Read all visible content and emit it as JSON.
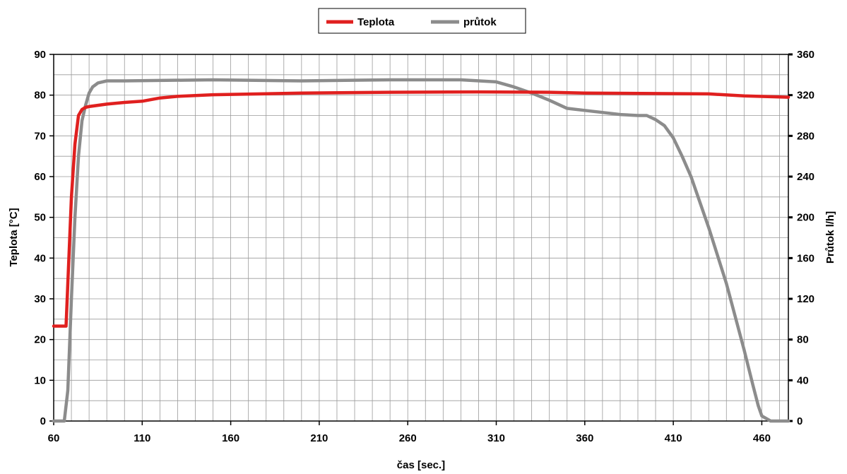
{
  "chart_data": {
    "type": "line",
    "legend_position": "top-center",
    "grid": true,
    "xlabel": "čas [sec.]",
    "ylabel_left": "Teplota   [°C]",
    "ylabel_right": "Průtok   l/h]",
    "xlim": [
      60,
      475
    ],
    "xticks": [
      60,
      110,
      160,
      210,
      260,
      310,
      360,
      410,
      460
    ],
    "ylim_left": [
      0,
      90
    ],
    "yticks_left": [
      0,
      10,
      20,
      30,
      40,
      50,
      60,
      70,
      80,
      90
    ],
    "ylim_right": [
      0,
      360
    ],
    "yticks_right": [
      0,
      40,
      80,
      120,
      160,
      200,
      240,
      280,
      320,
      360
    ],
    "series": [
      {
        "name": "Teplota",
        "axis": "left",
        "color": "#e0201f",
        "x": [
          60,
          67,
          70,
          72,
          74,
          76,
          78,
          80,
          90,
          100,
          110,
          120,
          130,
          150,
          200,
          250,
          300,
          340,
          360,
          400,
          430,
          450,
          475
        ],
        "y": [
          23.3,
          23.3,
          55,
          68,
          75,
          76.5,
          77,
          77.2,
          77.8,
          78.2,
          78.5,
          79.3,
          79.7,
          80.1,
          80.5,
          80.7,
          80.8,
          80.7,
          80.5,
          80.4,
          80.3,
          79.8,
          79.5
        ]
      },
      {
        "name": "průtok",
        "axis": "right",
        "color": "#8c8c8c",
        "x": [
          60,
          66,
          68,
          70,
          72,
          74,
          76,
          78,
          80,
          82,
          85,
          90,
          100,
          150,
          200,
          250,
          290,
          310,
          320,
          330,
          340,
          350,
          360,
          370,
          380,
          390,
          395,
          400,
          405,
          410,
          415,
          420,
          430,
          440,
          450,
          455,
          458,
          460,
          465,
          470,
          475
        ],
        "y": [
          0,
          0,
          30,
          120,
          200,
          260,
          295,
          310,
          322,
          328,
          332,
          334,
          334,
          335,
          334,
          335,
          335,
          333,
          328,
          322,
          315,
          307,
          305,
          303,
          301,
          300,
          300,
          296,
          290,
          278,
          260,
          240,
          190,
          135,
          70,
          35,
          15,
          5,
          0,
          0,
          0
        ]
      }
    ]
  }
}
